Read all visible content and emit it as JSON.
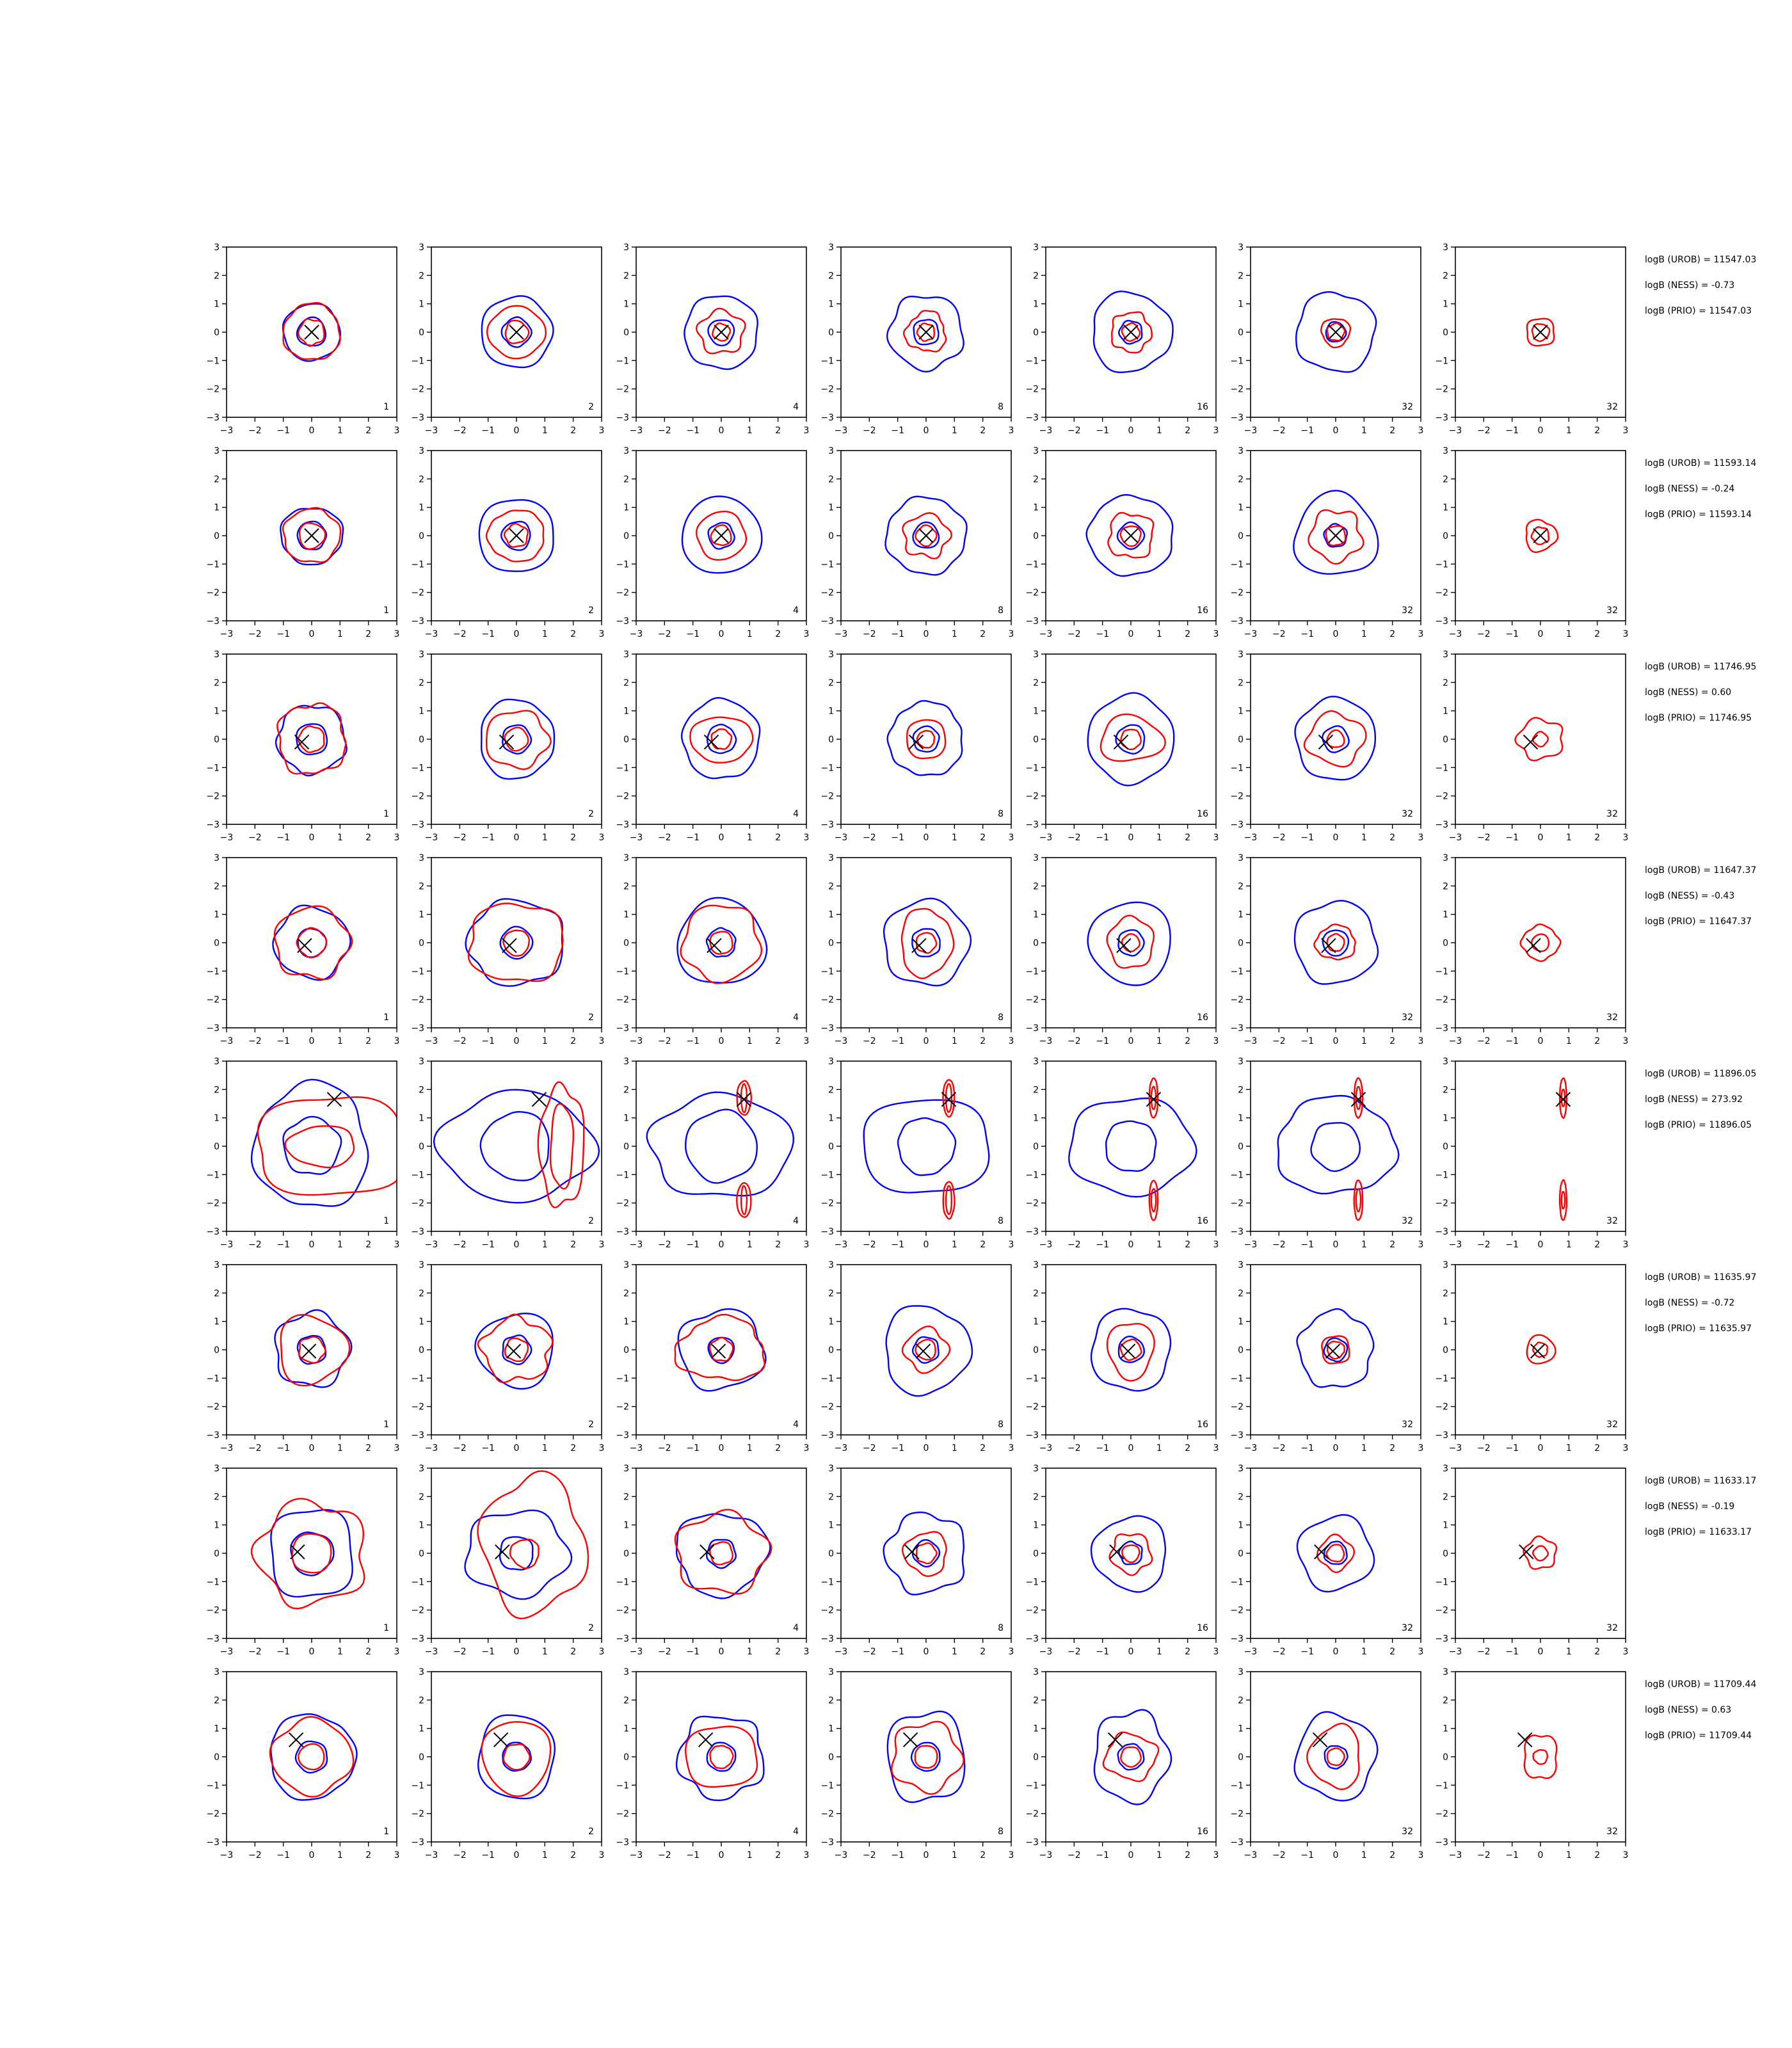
{
  "chart_data": {
    "type": "contour-grid",
    "axis": {
      "xlim": [
        -3,
        3
      ],
      "ylim": [
        -3,
        3
      ],
      "ticks": [
        -3,
        -2,
        -1,
        0,
        1,
        2,
        3
      ],
      "tick_labels": [
        "−3",
        "−2",
        "−1",
        "0",
        "1",
        "2",
        "3"
      ]
    },
    "colors": {
      "reference": "#0000ff",
      "model": "#ff0000",
      "marker": "#000000"
    },
    "column_labels": [
      "1",
      "2",
      "4",
      "8",
      "16",
      "32",
      "32"
    ],
    "rows": [
      {
        "marker": [
          0.0,
          0.0
        ],
        "annotations": [
          "logB (UROB) = 11547.03",
          "logB (NESS) = -0.73",
          "logB (PRIO) = 11547.03"
        ],
        "blue": [
          [
            1.0,
            1.0
          ],
          [
            1.25,
            1.25
          ],
          [
            1.3,
            1.3
          ],
          [
            1.3,
            1.3
          ],
          [
            1.4,
            1.4
          ],
          [
            1.4,
            1.4
          ],
          [
            0,
            0
          ]
        ],
        "red": [
          [
            1.0,
            1.0
          ],
          [
            1.0,
            0.9
          ],
          [
            0.8,
            0.75
          ],
          [
            0.7,
            0.7
          ],
          [
            0.7,
            0.7
          ],
          [
            0.5,
            0.5
          ],
          [
            0.5,
            0.5
          ]
        ],
        "blue_inner": [
          0.5,
          0.5,
          0.45,
          0.45,
          0.4,
          0.35,
          0
        ],
        "red_inner": [
          0.45,
          0.4,
          0.3,
          0.3,
          0.3,
          0.3,
          0.3
        ]
      },
      {
        "marker": [
          0.0,
          0.0
        ],
        "annotations": [
          "logB (UROB) = 11593.14",
          "logB (NESS) = -0.24",
          "logB (PRIO) = 11593.14"
        ],
        "blue": [
          [
            1.1,
            1.0
          ],
          [
            1.35,
            1.3
          ],
          [
            1.4,
            1.35
          ],
          [
            1.4,
            1.35
          ],
          [
            1.5,
            1.4
          ],
          [
            1.45,
            1.45
          ],
          [
            0,
            0
          ]
        ],
        "red": [
          [
            1.0,
            0.95
          ],
          [
            1.0,
            0.9
          ],
          [
            0.85,
            0.85
          ],
          [
            0.8,
            0.75
          ],
          [
            0.8,
            0.8
          ],
          [
            0.9,
            0.9
          ],
          [
            0.55,
            0.55
          ]
        ],
        "blue_inner": [
          0.5,
          0.5,
          0.45,
          0.45,
          0.45,
          0.4,
          0
        ],
        "red_inner": [
          0.45,
          0.4,
          0.35,
          0.35,
          0.35,
          0.35,
          0.3
        ]
      },
      {
        "marker": [
          -0.35,
          -0.1
        ],
        "annotations": [
          "logB (UROB) = 11746.95",
          "logB (NESS) = 0.60",
          "logB (PRIO) = 11746.95"
        ],
        "blue": [
          [
            1.2,
            1.2
          ],
          [
            1.3,
            1.4
          ],
          [
            1.35,
            1.4
          ],
          [
            1.3,
            1.3
          ],
          [
            1.5,
            1.55
          ],
          [
            1.4,
            1.45
          ],
          [
            0,
            0
          ]
        ],
        "red": [
          [
            1.2,
            1.25
          ],
          [
            1.1,
            1.0
          ],
          [
            1.1,
            0.8
          ],
          [
            0.7,
            0.7
          ],
          [
            1.1,
            0.8
          ],
          [
            1.0,
            0.9
          ],
          [
            0.8,
            0.7
          ]
        ],
        "blue_inner": [
          0.55,
          0.5,
          0.5,
          0.45,
          0.5,
          0.45,
          0
        ],
        "red_inner": [
          0.45,
          0.4,
          0.35,
          0.3,
          0.35,
          0.3,
          0.25
        ]
      },
      {
        "marker": [
          -0.25,
          -0.1
        ],
        "annotations": [
          "logB (UROB) = 11647.37",
          "logB (NESS) = -0.43",
          "logB (PRIO) = 11647.37"
        ],
        "blue": [
          [
            1.3,
            1.25
          ],
          [
            1.7,
            1.5
          ],
          [
            1.55,
            1.5
          ],
          [
            1.5,
            1.5
          ],
          [
            1.45,
            1.45
          ],
          [
            1.45,
            1.45
          ],
          [
            0,
            0
          ]
        ],
        "red": [
          [
            1.3,
            1.25
          ],
          [
            1.7,
            1.4
          ],
          [
            1.35,
            1.35
          ],
          [
            0.9,
            1.2
          ],
          [
            0.8,
            0.9
          ],
          [
            0.7,
            0.6
          ],
          [
            0.65,
            0.6
          ]
        ],
        "blue_inner": [
          0.5,
          0.55,
          0.5,
          0.5,
          0.45,
          0.45,
          0
        ],
        "red_inner": [
          0.5,
          0.45,
          0.4,
          0.35,
          0.3,
          0.3,
          0.3
        ]
      },
      {
        "marker": [
          0.8,
          1.65
        ],
        "annotations": [
          "logB (UROB) = 11896.05",
          "logB (NESS) = 273.92",
          "logB (PRIO) = 11896.05"
        ],
        "blue": [
          [
            2.0,
            2.2
          ],
          [
            2.7,
            1.9
          ],
          [
            2.5,
            1.8
          ],
          [
            2.3,
            1.7
          ],
          [
            2.2,
            1.7
          ],
          [
            2.1,
            1.7
          ],
          [
            0,
            0
          ]
        ],
        "red": [
          [
            2.7,
            1.8
          ],
          [
            1.3,
            2.1
          ],
          [
            0.25,
            0.6
          ],
          [
            0.2,
            0.65
          ],
          [
            0.15,
            0.7
          ],
          [
            0.15,
            0.7
          ],
          [
            0.12,
            0.7
          ]
        ],
        "blue_inner": [
          1.0,
          1.2,
          1.25,
          1.0,
          0.9,
          0.85,
          0
        ],
        "red_inner": [
          1.2,
          0.8,
          0.1,
          0.1,
          0.08,
          0.08,
          0.06
        ]
      },
      {
        "marker": [
          -0.1,
          -0.05
        ],
        "annotations": [
          "logB (UROB) = 11635.97",
          "logB (NESS) = -0.72",
          "logB (PRIO) = 11635.97"
        ],
        "blue": [
          [
            1.3,
            1.3
          ],
          [
            1.35,
            1.3
          ],
          [
            1.5,
            1.4
          ],
          [
            1.5,
            1.55
          ],
          [
            1.4,
            1.45
          ],
          [
            1.3,
            1.35
          ],
          [
            0,
            0
          ]
        ],
        "red": [
          [
            1.2,
            1.2
          ],
          [
            1.2,
            1.1
          ],
          [
            1.55,
            1.1
          ],
          [
            0.75,
            0.75
          ],
          [
            0.8,
            1.0
          ],
          [
            0.5,
            0.5
          ],
          [
            0.5,
            0.5
          ]
        ],
        "blue_inner": [
          0.5,
          0.5,
          0.45,
          0.45,
          0.45,
          0.4,
          0
        ],
        "red_inner": [
          0.45,
          0.4,
          0.4,
          0.35,
          0.35,
          0.3,
          0.25
        ]
      },
      {
        "marker": [
          -0.5,
          0.05
        ],
        "annotations": [
          "logB (UROB) = 11633.17",
          "logB (NESS) = -0.19",
          "logB (PRIO) = 11633.17"
        ],
        "blue": [
          [
            1.5,
            1.6
          ],
          [
            1.8,
            1.5
          ],
          [
            1.6,
            1.45
          ],
          [
            1.4,
            1.4
          ],
          [
            1.3,
            1.3
          ],
          [
            1.3,
            1.3
          ],
          [
            0,
            0
          ]
        ],
        "red": [
          [
            1.9,
            1.8
          ],
          [
            1.8,
            2.4
          ],
          [
            1.6,
            1.4
          ],
          [
            0.75,
            0.75
          ],
          [
            0.7,
            0.7
          ],
          [
            0.6,
            0.6
          ],
          [
            0.55,
            0.55
          ]
        ],
        "blue_inner": [
          0.75,
          0.6,
          0.5,
          0.45,
          0.4,
          0.4,
          0
        ],
        "red_inner": [
          0.7,
          0.5,
          0.4,
          0.35,
          0.3,
          0.3,
          0.25
        ]
      },
      {
        "marker": [
          -0.55,
          0.6
        ],
        "annotations": [
          "logB (UROB) = 11709.44",
          "logB (NESS) = 0.63",
          "logB (PRIO) = 11709.44"
        ],
        "blue": [
          [
            1.5,
            1.5
          ],
          [
            1.35,
            1.5
          ],
          [
            1.5,
            1.45
          ],
          [
            1.4,
            1.6
          ],
          [
            1.3,
            1.6
          ],
          [
            1.4,
            1.5
          ],
          [
            0,
            0
          ]
        ],
        "red": [
          [
            1.4,
            1.3
          ],
          [
            1.2,
            1.3
          ],
          [
            1.3,
            1.1
          ],
          [
            1.2,
            1.2
          ],
          [
            0.9,
            0.8
          ],
          [
            0.9,
            1.1
          ],
          [
            0.6,
            0.8
          ]
        ],
        "blue_inner": [
          0.55,
          0.5,
          0.5,
          0.5,
          0.45,
          0.4,
          0
        ],
        "red_inner": [
          0.45,
          0.45,
          0.4,
          0.4,
          0.35,
          0.3,
          0.25
        ]
      }
    ]
  }
}
